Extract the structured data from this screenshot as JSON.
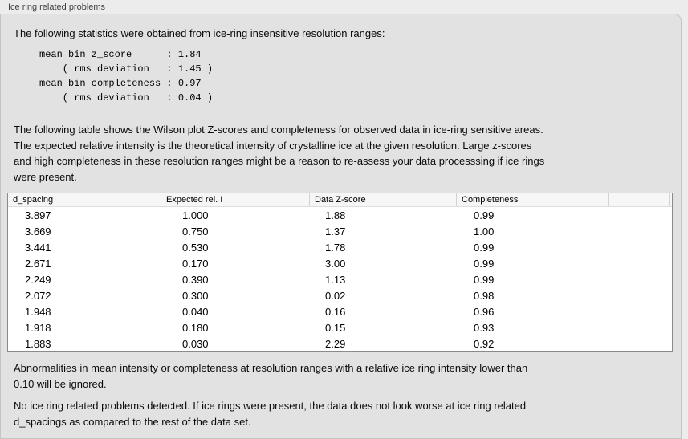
{
  "panel": {
    "title": "Ice ring related problems"
  },
  "colors": {
    "outer_bg": "#ececec",
    "panel_bg": "#e2e2e2",
    "panel_border": "#c4c4c4",
    "table_bg": "#ffffff",
    "table_header_bg": "#f6f6f6",
    "table_border": "#8a8a8a",
    "text": "#000000",
    "title_text": "#3f3f3f"
  },
  "stats": {
    "intro": "The following statistics were obtained from ice-ring insensitive resolution ranges:",
    "block": "mean bin z_score      : 1.84\n    ( rms deviation   : 1.45 )\nmean bin completeness : 0.97\n    ( rms deviation   : 0.04 )",
    "values": {
      "mean_bin_z_score": "1.84",
      "z_score_rms_deviation": "1.45",
      "mean_bin_completeness": "0.97",
      "completeness_rms_deviation": "0.04"
    }
  },
  "table_section": {
    "intro": "The following table shows the Wilson plot Z-scores and completeness for observed data in ice-ring sensitive areas.\nThe expected relative intensity is the theoretical intensity of crystalline ice at the given resolution. Large z-scores\nand high completeness in these resolution ranges might be a reason to re-assess your data processsing if ice rings\nwere present.",
    "table": {
      "headers": [
        "d_spacing",
        "Expected rel. I",
        "Data Z-score",
        "Completeness"
      ],
      "rows": [
        [
          "3.897",
          "1.000",
          "1.88",
          "0.99"
        ],
        [
          "3.669",
          "0.750",
          "1.37",
          "1.00"
        ],
        [
          "3.441",
          "0.530",
          "1.78",
          "0.99"
        ],
        [
          "2.671",
          "0.170",
          "3.00",
          "0.99"
        ],
        [
          "2.249",
          "0.390",
          "1.13",
          "0.99"
        ],
        [
          "2.072",
          "0.300",
          "0.02",
          "0.98"
        ],
        [
          "1.948",
          "0.040",
          "0.16",
          "0.96"
        ],
        [
          "1.918",
          "0.180",
          "0.15",
          "0.93"
        ],
        [
          "1.883",
          "0.030",
          "2.29",
          "0.92"
        ]
      ]
    }
  },
  "footer": {
    "ignore_note": "Abnormalities in mean intensity or completeness at resolution ranges with a relative ice ring intensity lower than\n0.10 will be ignored.",
    "conclusion": "No ice ring related problems detected. If ice rings were present, the data does not look worse at ice ring related\nd_spacings as compared to the rest of the data set."
  }
}
